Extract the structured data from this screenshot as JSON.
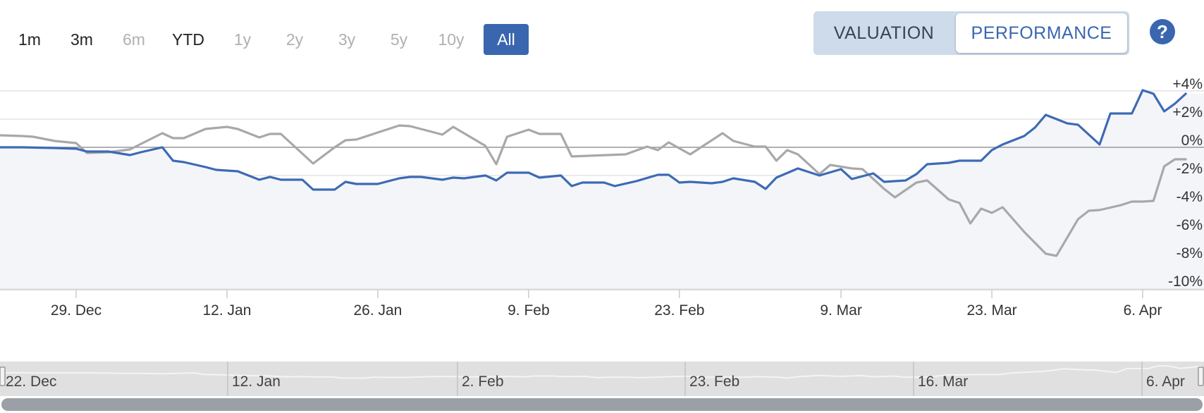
{
  "range_selector": {
    "buttons": [
      {
        "label": "1m",
        "state": "enabled"
      },
      {
        "label": "3m",
        "state": "enabled"
      },
      {
        "label": "6m",
        "state": "disabled"
      },
      {
        "label": "YTD",
        "state": "enabled"
      },
      {
        "label": "1y",
        "state": "disabled"
      },
      {
        "label": "2y",
        "state": "disabled"
      },
      {
        "label": "3y",
        "state": "disabled"
      },
      {
        "label": "5y",
        "state": "disabled"
      },
      {
        "label": "10y",
        "state": "disabled"
      },
      {
        "label": "All",
        "state": "active"
      }
    ]
  },
  "toggle": {
    "valuation_label": "VALUATION",
    "performance_label": "PERFORMANCE",
    "selected": "PERFORMANCE"
  },
  "help_label": "?",
  "colors": {
    "accent": "#3a66b0",
    "series_primary": "#3d6ab4",
    "series_secondary": "#a8a8ac",
    "area_fill": "#f3f5f9",
    "navigator_bg": "#e0e0e0",
    "scrollbar": "#9aa0a6"
  },
  "chart_data": {
    "type": "line",
    "xlabel": "",
    "ylabel": "",
    "ylim": [
      -10,
      4
    ],
    "y_ticks": [
      4,
      2,
      0,
      -2,
      -4,
      -6,
      -8,
      -10
    ],
    "y_tick_labels": [
      "+4%",
      "+2%",
      "0%",
      "-2%",
      "-4%",
      "-6%",
      "-8%",
      "-10%"
    ],
    "x_range": [
      "2023-12-19",
      "2024-04-09"
    ],
    "x_ticks": [
      {
        "date": "2023-12-29",
        "label": "29. Dec"
      },
      {
        "date": "2024-01-12",
        "label": "12. Jan"
      },
      {
        "date": "2024-01-26",
        "label": "26. Jan"
      },
      {
        "date": "2024-02-09",
        "label": "9. Feb"
      },
      {
        "date": "2024-02-23",
        "label": "23. Feb"
      },
      {
        "date": "2024-03-09",
        "label": "9. Mar"
      },
      {
        "date": "2024-03-23",
        "label": "23. Mar"
      },
      {
        "date": "2024-04-06",
        "label": "6. Apr"
      }
    ],
    "grid": true,
    "legend": "none",
    "series": [
      {
        "color": "#3d6ab4",
        "area": true,
        "points": [
          [
            "2023-12-19",
            0.0
          ],
          [
            "2023-12-20",
            0.05
          ],
          [
            "2023-12-22",
            0.0
          ],
          [
            "2023-12-24",
            0.0
          ],
          [
            "2023-12-27",
            -0.05
          ],
          [
            "2023-12-29",
            -0.1
          ],
          [
            "2023-12-30",
            -0.3
          ],
          [
            "2024-01-01",
            -0.3
          ],
          [
            "2024-01-03",
            -0.55
          ],
          [
            "2024-01-04",
            -0.35
          ],
          [
            "2024-01-06",
            0.0
          ],
          [
            "2024-01-07",
            -0.95
          ],
          [
            "2024-01-08",
            -1.05
          ],
          [
            "2024-01-10",
            -1.4
          ],
          [
            "2024-01-11",
            -1.6
          ],
          [
            "2024-01-13",
            -1.7
          ],
          [
            "2024-01-15",
            -2.3
          ],
          [
            "2024-01-16",
            -2.1
          ],
          [
            "2024-01-17",
            -2.3
          ],
          [
            "2024-01-19",
            -2.3
          ],
          [
            "2024-01-20",
            -3.0
          ],
          [
            "2024-01-22",
            -3.0
          ],
          [
            "2024-01-23",
            -2.45
          ],
          [
            "2024-01-24",
            -2.6
          ],
          [
            "2024-01-26",
            -2.6
          ],
          [
            "2024-01-28",
            -2.2
          ],
          [
            "2024-01-29",
            -2.1
          ],
          [
            "2024-01-30",
            -2.1
          ],
          [
            "2024-02-01",
            -2.3
          ],
          [
            "2024-02-02",
            -2.15
          ],
          [
            "2024-02-03",
            -2.2
          ],
          [
            "2024-02-05",
            -2.0
          ],
          [
            "2024-02-06",
            -2.35
          ],
          [
            "2024-02-07",
            -1.8
          ],
          [
            "2024-02-09",
            -1.8
          ],
          [
            "2024-02-10",
            -2.15
          ],
          [
            "2024-02-12",
            -2.0
          ],
          [
            "2024-02-13",
            -2.75
          ],
          [
            "2024-02-14",
            -2.5
          ],
          [
            "2024-02-16",
            -2.5
          ],
          [
            "2024-02-17",
            -2.75
          ],
          [
            "2024-02-19",
            -2.4
          ],
          [
            "2024-02-21",
            -1.95
          ],
          [
            "2024-02-22",
            -1.95
          ],
          [
            "2024-02-23",
            -2.5
          ],
          [
            "2024-02-24",
            -2.45
          ],
          [
            "2024-02-26",
            -2.55
          ],
          [
            "2024-02-27",
            -2.45
          ],
          [
            "2024-02-28",
            -2.2
          ],
          [
            "2024-03-01",
            -2.45
          ],
          [
            "2024-03-02",
            -2.95
          ],
          [
            "2024-03-03",
            -2.15
          ],
          [
            "2024-03-05",
            -1.5
          ],
          [
            "2024-03-07",
            -2.0
          ],
          [
            "2024-03-09",
            -1.55
          ],
          [
            "2024-03-10",
            -2.25
          ],
          [
            "2024-03-12",
            -1.85
          ],
          [
            "2024-03-13",
            -2.45
          ],
          [
            "2024-03-15",
            -2.35
          ],
          [
            "2024-03-16",
            -1.9
          ],
          [
            "2024-03-17",
            -1.2
          ],
          [
            "2024-03-19",
            -1.1
          ],
          [
            "2024-03-20",
            -0.95
          ],
          [
            "2024-03-22",
            -0.95
          ],
          [
            "2024-03-23",
            -0.2
          ],
          [
            "2024-03-24",
            0.2
          ],
          [
            "2024-03-26",
            0.8
          ],
          [
            "2024-03-27",
            1.4
          ],
          [
            "2024-03-28",
            2.3
          ],
          [
            "2024-03-30",
            1.7
          ],
          [
            "2024-03-31",
            1.6
          ],
          [
            "2024-04-02",
            0.2
          ],
          [
            "2024-04-03",
            2.4
          ],
          [
            "2024-04-05",
            2.4
          ],
          [
            "2024-04-06",
            4.05
          ],
          [
            "2024-04-07",
            3.8
          ],
          [
            "2024-04-08",
            2.55
          ],
          [
            "2024-04-09",
            3.1
          ],
          [
            "2024-04-10",
            3.8
          ]
        ]
      },
      {
        "color": "#a8a8ac",
        "area": false,
        "points": [
          [
            "2023-12-19",
            0.1
          ],
          [
            "2023-12-20",
            0.5
          ],
          [
            "2023-12-22",
            0.85
          ],
          [
            "2023-12-24",
            0.8
          ],
          [
            "2023-12-25",
            0.75
          ],
          [
            "2023-12-27",
            0.45
          ],
          [
            "2023-12-29",
            0.3
          ],
          [
            "2023-12-30",
            -0.4
          ],
          [
            "2024-01-01",
            -0.35
          ],
          [
            "2024-01-03",
            -0.15
          ],
          [
            "2024-01-06",
            1.0
          ],
          [
            "2024-01-07",
            0.65
          ],
          [
            "2024-01-08",
            0.65
          ],
          [
            "2024-01-10",
            1.3
          ],
          [
            "2024-01-12",
            1.45
          ],
          [
            "2024-01-13",
            1.3
          ],
          [
            "2024-01-15",
            0.7
          ],
          [
            "2024-01-16",
            0.95
          ],
          [
            "2024-01-17",
            0.95
          ],
          [
            "2024-01-20",
            -1.15
          ],
          [
            "2024-01-22",
            0.0
          ],
          [
            "2024-01-23",
            0.5
          ],
          [
            "2024-01-24",
            0.55
          ],
          [
            "2024-01-26",
            1.05
          ],
          [
            "2024-01-28",
            1.55
          ],
          [
            "2024-01-29",
            1.5
          ],
          [
            "2024-01-30",
            1.3
          ],
          [
            "2024-02-01",
            0.9
          ],
          [
            "2024-02-02",
            1.45
          ],
          [
            "2024-02-05",
            0.1
          ],
          [
            "2024-02-06",
            -1.2
          ],
          [
            "2024-02-07",
            0.75
          ],
          [
            "2024-02-09",
            1.25
          ],
          [
            "2024-02-10",
            0.95
          ],
          [
            "2024-02-12",
            0.95
          ],
          [
            "2024-02-13",
            -0.65
          ],
          [
            "2024-02-18",
            -0.5
          ],
          [
            "2024-02-20",
            0.05
          ],
          [
            "2024-02-21",
            -0.2
          ],
          [
            "2024-02-22",
            0.35
          ],
          [
            "2024-02-24",
            -0.5
          ],
          [
            "2024-02-27",
            1.0
          ],
          [
            "2024-02-28",
            0.45
          ],
          [
            "2024-03-01",
            0.05
          ],
          [
            "2024-03-02",
            0.05
          ],
          [
            "2024-03-03",
            -0.95
          ],
          [
            "2024-03-04",
            -0.2
          ],
          [
            "2024-03-05",
            -0.5
          ],
          [
            "2024-03-06",
            -1.2
          ],
          [
            "2024-03-07",
            -1.9
          ],
          [
            "2024-03-08",
            -1.25
          ],
          [
            "2024-03-10",
            -1.5
          ],
          [
            "2024-03-11",
            -1.55
          ],
          [
            "2024-03-13",
            -2.95
          ],
          [
            "2024-03-14",
            -3.55
          ],
          [
            "2024-03-16",
            -2.5
          ],
          [
            "2024-03-17",
            -2.35
          ],
          [
            "2024-03-19",
            -3.7
          ],
          [
            "2024-03-20",
            -3.95
          ],
          [
            "2024-03-21",
            -5.4
          ],
          [
            "2024-03-22",
            -4.35
          ],
          [
            "2024-03-23",
            -4.65
          ],
          [
            "2024-03-24",
            -4.25
          ],
          [
            "2024-03-26",
            -6.0
          ],
          [
            "2024-03-28",
            -7.55
          ],
          [
            "2024-03-29",
            -7.7
          ],
          [
            "2024-03-31",
            -5.1
          ],
          [
            "2024-04-01",
            -4.5
          ],
          [
            "2024-04-02",
            -4.45
          ],
          [
            "2024-04-04",
            -4.1
          ],
          [
            "2024-04-05",
            -3.85
          ],
          [
            "2024-04-06",
            -3.85
          ],
          [
            "2024-04-07",
            -3.8
          ],
          [
            "2024-04-08",
            -1.35
          ],
          [
            "2024-04-09",
            -0.85
          ],
          [
            "2024-04-10",
            -0.85
          ]
        ]
      }
    ],
    "navigator": {
      "tick_labels": [
        "22. Dec",
        "12. Jan",
        "2. Feb",
        "23. Feb",
        "16. Mar",
        "6. Apr"
      ]
    }
  }
}
